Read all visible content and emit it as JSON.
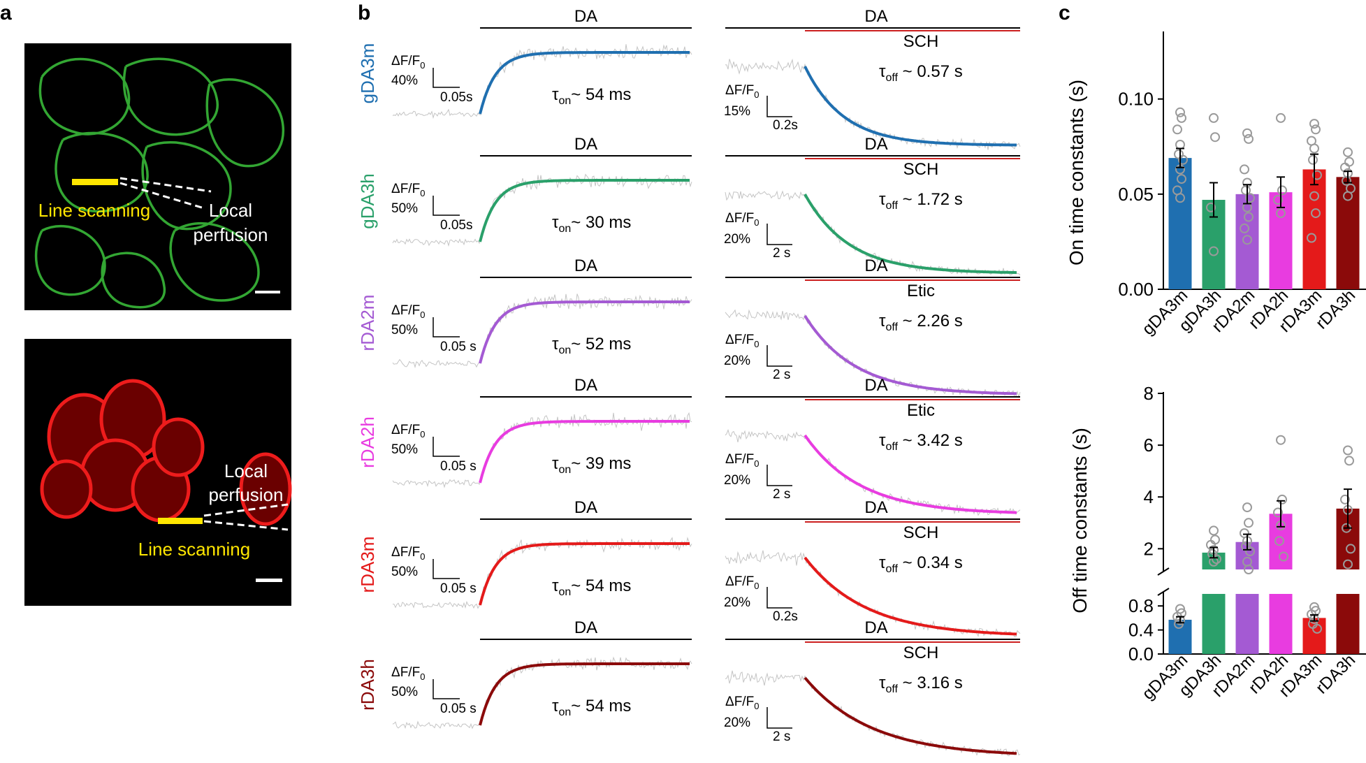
{
  "panel_labels": [
    "a",
    "b",
    "c"
  ],
  "panel_a": {
    "images": [
      {
        "color": "#3cc43c",
        "labels": [
          "Line scanning",
          "Local",
          "perfusion"
        ]
      },
      {
        "color": "#ee1c1c",
        "labels": [
          "Local",
          "perfusion",
          "Line scanning"
        ]
      }
    ]
  },
  "chart_data": [
    {
      "type": "line",
      "panel": "b",
      "colors": {
        "gDA3m": "#1f6fb0",
        "gDA3h": "#2aa06a",
        "rDA2m": "#a45ad3",
        "rDA2h": "#e83ce0",
        "rDA3m": "#e41a1a",
        "rDA3h": "#8b0a0a"
      },
      "rows": [
        {
          "sensor": "gDA3m",
          "on": {
            "drug": "DA",
            "tau": "54 ms",
            "scale_y": "40%",
            "scale_x": "0.05s"
          },
          "off": {
            "drug": "DA",
            "antagonist": "SCH",
            "tau": "0.57 s",
            "scale_y": "15%",
            "scale_x": "0.2s"
          }
        },
        {
          "sensor": "gDA3h",
          "on": {
            "drug": "DA",
            "tau": "30 ms",
            "scale_y": "50%",
            "scale_x": "0.05s"
          },
          "off": {
            "drug": "DA",
            "antagonist": "SCH",
            "tau": "1.72 s",
            "scale_y": "20%",
            "scale_x": "2 s"
          }
        },
        {
          "sensor": "rDA2m",
          "on": {
            "drug": "DA",
            "tau": "52 ms",
            "scale_y": "50%",
            "scale_x": "0.05 s"
          },
          "off": {
            "drug": "DA",
            "antagonist": "Etic",
            "tau": "2.26 s",
            "scale_y": "20%",
            "scale_x": "2 s"
          }
        },
        {
          "sensor": "rDA2h",
          "on": {
            "drug": "DA",
            "tau": "39 ms",
            "scale_y": "50%",
            "scale_x": "0.05 s"
          },
          "off": {
            "drug": "DA",
            "antagonist": "Etic",
            "tau": "3.42 s",
            "scale_y": "20%",
            "scale_x": "2 s"
          }
        },
        {
          "sensor": "rDA3m",
          "on": {
            "drug": "DA",
            "tau": "54 ms",
            "scale_y": "50%",
            "scale_x": "0.05 s"
          },
          "off": {
            "drug": "DA",
            "antagonist": "SCH",
            "tau": "0.34 s",
            "scale_y": "20%",
            "scale_x": "0.2s"
          }
        },
        {
          "sensor": "rDA3h",
          "on": {
            "drug": "DA",
            "tau": "54 ms",
            "scale_y": "50%",
            "scale_x": "0.05 s"
          },
          "off": {
            "drug": "DA",
            "antagonist": "SCH",
            "tau": "3.16 s",
            "scale_y": "20%",
            "scale_x": "2 s"
          }
        }
      ],
      "labels": {
        "dff": "ΔF/F",
        "dff_sub": "0",
        "tau": "τ",
        "on_sub": "on",
        "off_sub": "off",
        "approx": "~"
      }
    },
    {
      "type": "bar",
      "panel": "c-top",
      "categories": [
        "gDA3m",
        "gDA3h",
        "rDA2m",
        "rDA2h",
        "rDA3m",
        "rDA3h"
      ],
      "values": [
        0.069,
        0.047,
        0.05,
        0.051,
        0.063,
        0.059
      ],
      "sem": [
        0.005,
        0.009,
        0.005,
        0.008,
        0.008,
        0.003
      ],
      "points": [
        [
          0.093,
          0.09,
          0.084,
          0.076,
          0.071,
          0.068,
          0.063,
          0.058,
          0.052,
          0.048
        ],
        [
          0.09,
          0.08,
          0.043,
          0.02
        ],
        [
          0.082,
          0.079,
          0.063,
          0.056,
          0.052,
          0.048,
          0.043,
          0.038,
          0.032,
          0.026
        ],
        [
          0.09,
          0.052,
          0.047,
          0.04
        ],
        [
          0.087,
          0.084,
          0.078,
          0.074,
          0.068,
          0.06,
          0.049,
          0.04,
          0.027
        ],
        [
          0.072,
          0.067,
          0.064,
          0.061,
          0.057,
          0.053,
          0.049
        ]
      ],
      "ylabel": "On time constants (s)",
      "yticks": [
        "0.00",
        "0.05",
        "0.10"
      ],
      "ylim": [
        0,
        0.13
      ]
    },
    {
      "type": "bar",
      "panel": "c-bottom",
      "categories": [
        "gDA3m",
        "gDA3h",
        "rDA2m",
        "rDA2h",
        "rDA3m",
        "rDA3h"
      ],
      "values": [
        0.57,
        1.85,
        2.26,
        3.35,
        0.6,
        3.55
      ],
      "sem": [
        0.05,
        0.2,
        0.3,
        0.5,
        0.05,
        0.75
      ],
      "points": [
        [
          0.75,
          0.68,
          0.62,
          0.56,
          0.5
        ],
        [
          2.7,
          2.35,
          2.15,
          1.95,
          1.8,
          1.6,
          1.5
        ],
        [
          3.6,
          3.0,
          2.6,
          2.3,
          2.1,
          1.9,
          1.5,
          1.2
        ],
        [
          6.2,
          3.9,
          3.4,
          2.9,
          2.3,
          1.7
        ],
        [
          0.78,
          0.72,
          0.66,
          0.58,
          0.5,
          0.42
        ],
        [
          5.8,
          5.4,
          3.9,
          3.5,
          2.8,
          2.0,
          1.4
        ]
      ],
      "ylabel": "Off time constants (s)",
      "yticks_upper": [
        "2",
        "4",
        "6",
        "8"
      ],
      "yticks_lower": [
        "0.0",
        "0.4",
        "0.8"
      ],
      "axis_break": [
        1.0,
        1.2
      ],
      "ylim_lower": [
        0,
        1.0
      ],
      "ylim_upper": [
        1.2,
        8
      ]
    }
  ]
}
